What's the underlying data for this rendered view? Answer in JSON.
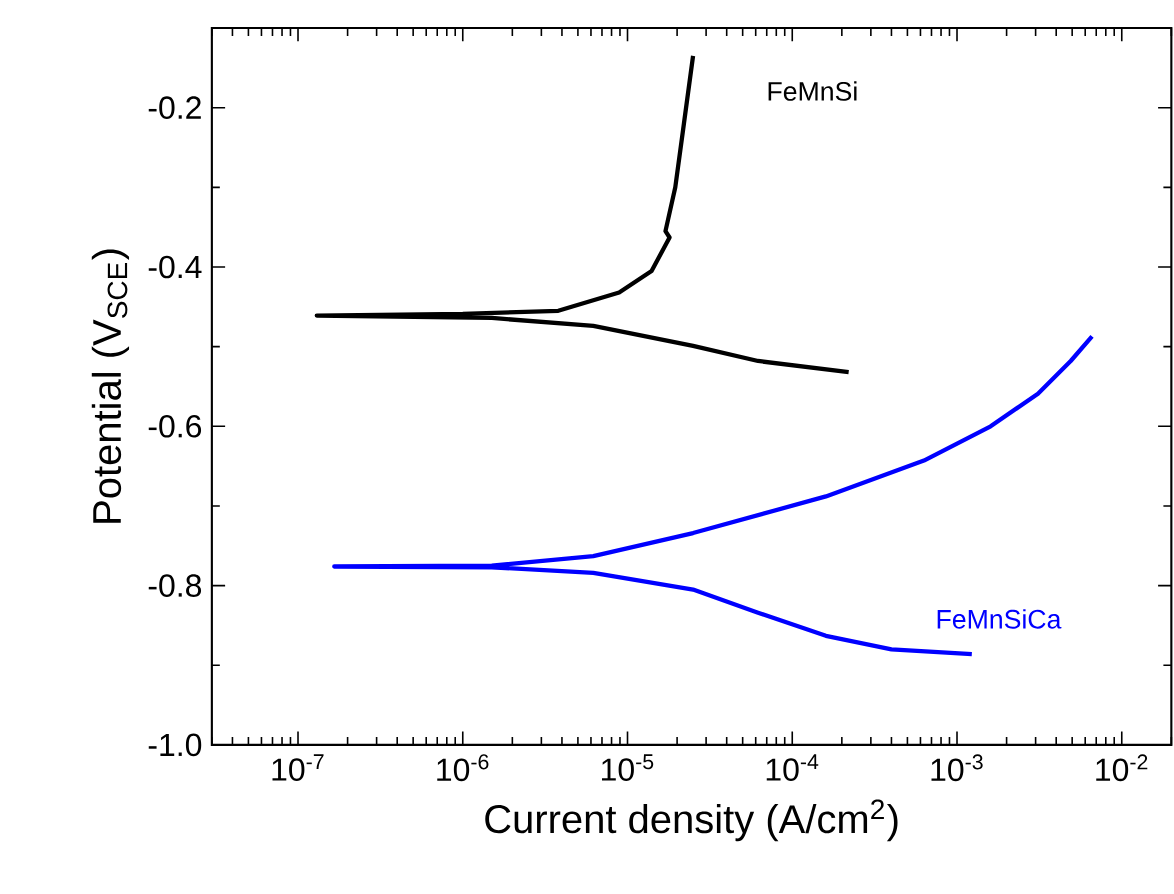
{
  "chart_data": {
    "type": "line",
    "log": "x",
    "xlabel": "Current density (A/cm$^{2}$)",
    "ylabel": "Potential (V$_{SCE}$)",
    "xlim": [
      3e-08,
      0.02
    ],
    "ylim": [
      -1.0,
      -0.1
    ],
    "xticks": [
      {
        "value": 1e-07,
        "label": "10$^{-7}$"
      },
      {
        "value": 1e-06,
        "label": "10$^{-6}$"
      },
      {
        "value": 1e-05,
        "label": "10$^{-5}$"
      },
      {
        "value": 0.0001,
        "label": "10$^{-4}$"
      },
      {
        "value": 0.001,
        "label": "10$^{-3}$"
      },
      {
        "value": 0.01,
        "label": "10$^{-2}$"
      }
    ],
    "yticks": [
      {
        "value": -1.0,
        "label": "-1.0"
      },
      -0.8,
      -0.6,
      -0.4,
      -0.2
    ],
    "series": [
      {
        "name": "FeMnSi",
        "color": "#000000",
        "x": [
          0.00022,
          6.2e-05,
          2.5e-05,
          6.2e-06,
          1.5e-06,
          1.3e-07,
          1e-06,
          3.8e-06,
          8.9e-06,
          1.4e-05,
          1.8e-05,
          1.7e-05,
          1.95e-05,
          2.2e-05,
          2.5e-05
        ],
        "values": [
          -0.532,
          -0.518,
          -0.499,
          -0.474,
          -0.464,
          -0.461,
          -0.459,
          -0.455,
          -0.432,
          -0.405,
          -0.363,
          -0.355,
          -0.3,
          -0.22,
          -0.135
        ]
      },
      {
        "name": "FeMnSiCa",
        "color": "#0000ff",
        "x": [
          0.00123,
          0.0004,
          0.00016,
          6.2e-05,
          2.5e-05,
          6.2e-06,
          1.5e-06,
          1.66e-07,
          1.5e-06,
          6.2e-06,
          2.5e-05,
          0.00016,
          0.00063,
          0.0016,
          0.0031,
          0.0049,
          0.0066
        ],
        "values": [
          -0.886,
          -0.88,
          -0.863,
          -0.834,
          -0.805,
          -0.784,
          -0.777,
          -0.776,
          -0.775,
          -0.763,
          -0.734,
          -0.688,
          -0.643,
          -0.6,
          -0.559,
          -0.518,
          -0.487
        ]
      }
    ]
  }
}
